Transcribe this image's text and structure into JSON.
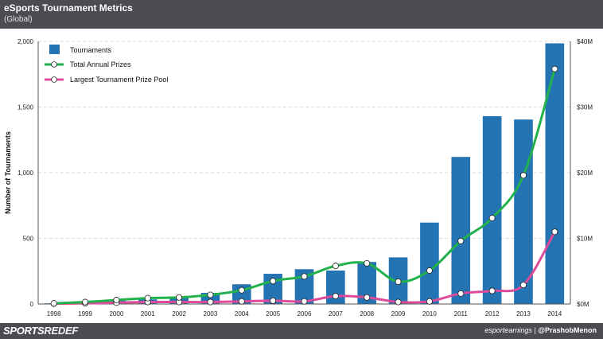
{
  "header": {
    "title": "eSports Tournament Metrics",
    "subtitle": "(Global)"
  },
  "footer": {
    "brand_part1": "SPORTS",
    "brand_part2": "REDEF",
    "source": "esportearnings",
    "separator": "|",
    "handle": "@PrashobMenon"
  },
  "chart_data": {
    "type": "bar+line",
    "title": "eSports Tournament Metrics",
    "subtitle": "(Global)",
    "categories": [
      "1998",
      "1999",
      "2000",
      "2001",
      "2002",
      "2003",
      "2004",
      "2005",
      "2006",
      "2007",
      "2008",
      "2009",
      "2010",
      "2011",
      "2012",
      "2013",
      "2014"
    ],
    "ylabel": "Number of Tournaments",
    "ylim": [
      0,
      2000
    ],
    "yticks": [
      0,
      500,
      1000,
      1500,
      2000
    ],
    "ytick_labels": [
      "0",
      "500",
      "1,000",
      "1,500",
      "2,000"
    ],
    "y2lim": [
      0,
      40
    ],
    "y2ticks": [
      0,
      10,
      20,
      30,
      40
    ],
    "y2tick_labels": [
      "$0M",
      "$10M",
      "$20M",
      "$30M",
      "$40M"
    ],
    "grid": "horizontal dashed",
    "legend_position": "top-left",
    "colors": {
      "bars": "#2473b3",
      "total": "#22b24c",
      "largest": "#de4a9a"
    },
    "series": [
      {
        "name": "Tournaments",
        "type": "bar",
        "axis": "left",
        "values": [
          5,
          10,
          25,
          35,
          45,
          85,
          150,
          230,
          265,
          255,
          320,
          355,
          620,
          1120,
          1430,
          1405,
          1985
        ]
      },
      {
        "name": "Total Annual Prizes",
        "type": "line",
        "axis": "right",
        "values": [
          0.1,
          0.3,
          0.6,
          0.9,
          1.0,
          1.4,
          2.1,
          3.5,
          4.2,
          5.8,
          6.2,
          3.4,
          5.1,
          9.6,
          13.1,
          19.6,
          35.8
        ]
      },
      {
        "name": "Largest Tournament Prize Pool",
        "type": "line",
        "axis": "right",
        "values": [
          0.05,
          0.1,
          0.2,
          0.3,
          0.3,
          0.3,
          0.4,
          0.5,
          0.4,
          1.2,
          1.0,
          0.3,
          0.4,
          1.6,
          2.0,
          2.9,
          11.0
        ]
      }
    ]
  }
}
